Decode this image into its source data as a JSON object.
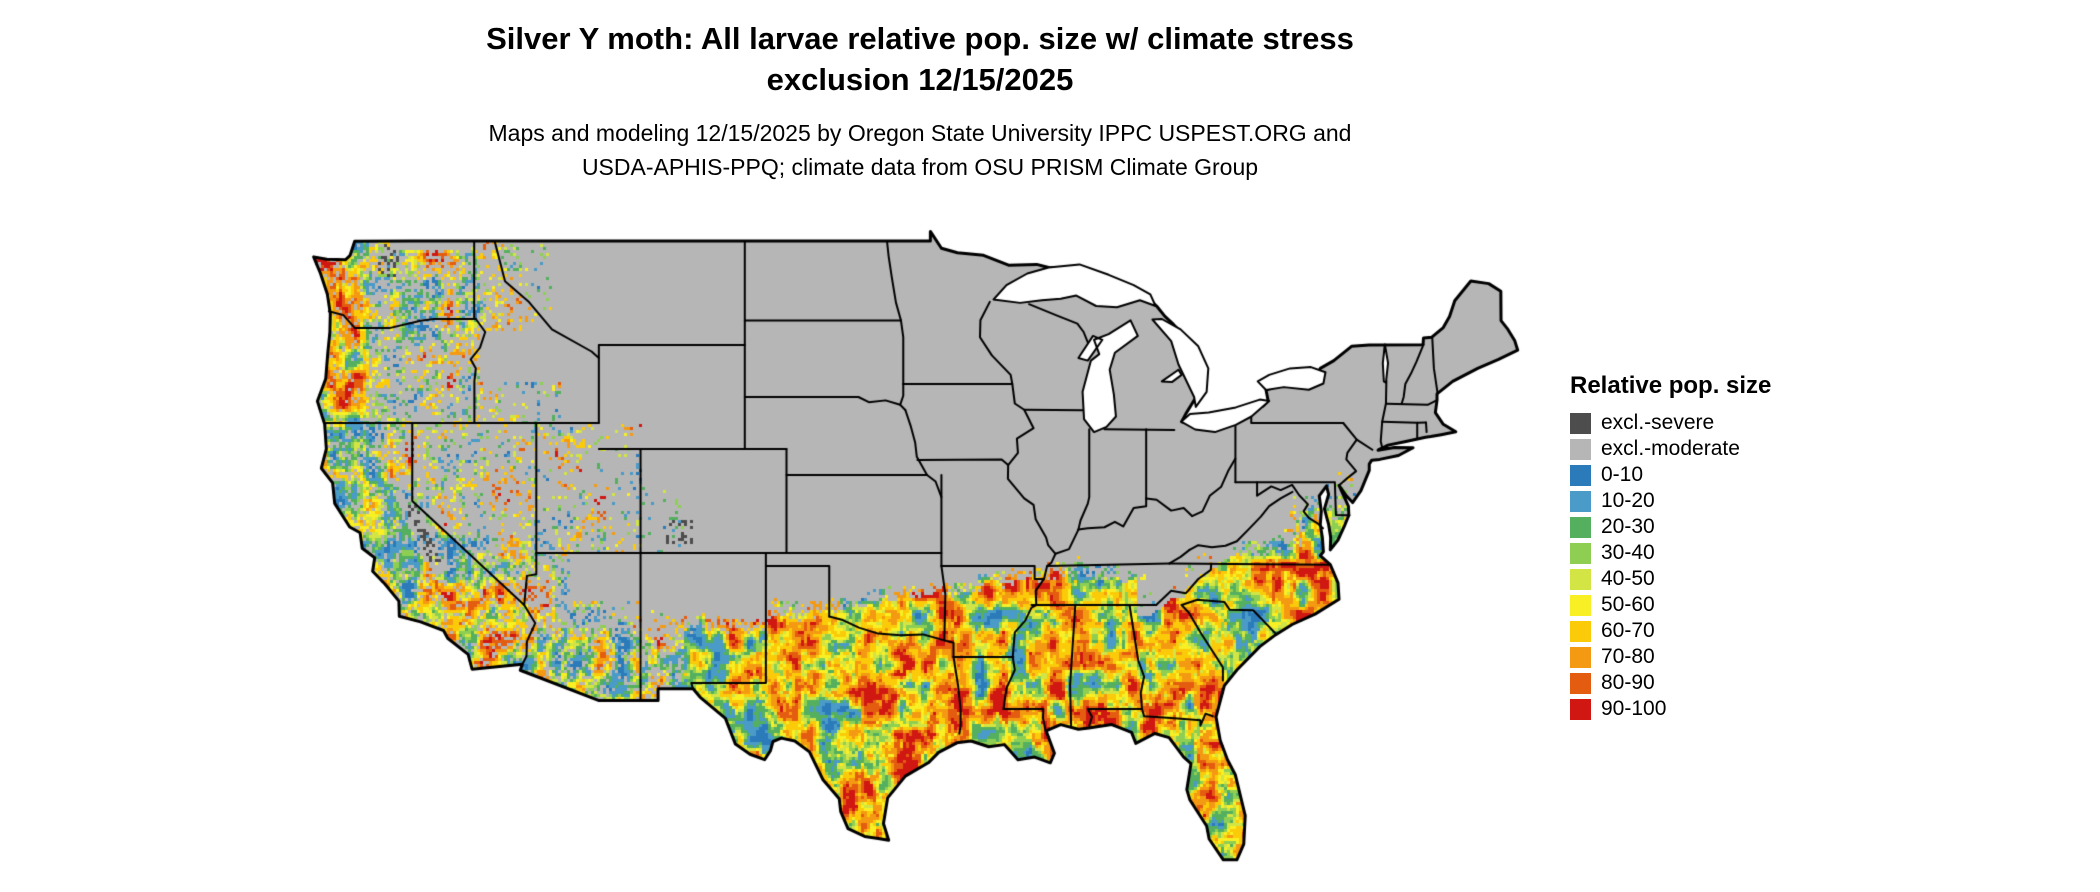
{
  "title": {
    "line1": "Silver Y moth: All larvae relative pop. size w/ climate stress",
    "line2": "exclusion 12/15/2025"
  },
  "subtitle": {
    "line1": "Maps and modeling 12/15/2025 by Oregon State University IPPC USPEST.ORG and",
    "line2": "USDA-APHIS-PPQ; climate data from OSU PRISM Climate Group"
  },
  "legend": {
    "title": "Relative pop. size",
    "items": [
      {
        "label": "excl.-severe",
        "color": "#4d4d4d"
      },
      {
        "label": "excl.-moderate",
        "color": "#b6b6b6"
      },
      {
        "label": "0-10",
        "color": "#2b7bba"
      },
      {
        "label": "10-20",
        "color": "#4a9bc7"
      },
      {
        "label": "20-30",
        "color": "#54b05f"
      },
      {
        "label": "30-40",
        "color": "#8ecf53"
      },
      {
        "label": "40-50",
        "color": "#d2e544"
      },
      {
        "label": "50-60",
        "color": "#f8ef24"
      },
      {
        "label": "60-70",
        "color": "#fbcb0a"
      },
      {
        "label": "70-80",
        "color": "#f49a12"
      },
      {
        "label": "80-90",
        "color": "#e45c10"
      },
      {
        "label": "90-100",
        "color": "#d01712"
      }
    ]
  },
  "map": {
    "background": "#ffffff",
    "land_excluded_moderate": "#b6b6b6",
    "water": "#ffffff",
    "border_color": "#000000"
  }
}
